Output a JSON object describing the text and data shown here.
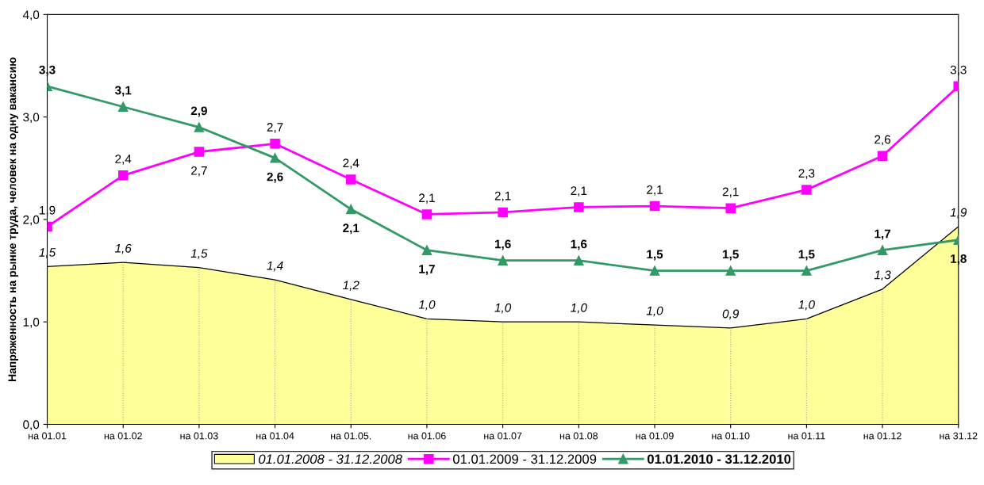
{
  "chart_data": {
    "type": "line",
    "ylabel": "Напряженность на рынке труда, человек на одну вакансию",
    "categories": [
      "на 01.01",
      "на 01.02",
      "на 01.03",
      "на 01.04",
      "на 01.05.",
      "на 01.06",
      "на 01.07",
      "на 01.08",
      "на 01.09",
      "на 01.10",
      "на 01.11",
      "на 01.12",
      "на 31.12"
    ],
    "series": [
      {
        "name": "01.01.2008 - 31.12.2008",
        "type": "area",
        "color": "#ffff99",
        "values": [
          1.54,
          1.58,
          1.53,
          1.41,
          1.22,
          1.03,
          1.0,
          1.0,
          0.97,
          0.94,
          1.03,
          1.32,
          1.93
        ],
        "value_labels": [
          "1,5",
          "1,6",
          "1,5",
          "1,4",
          "1,2",
          "1,0",
          "1,0",
          "1,0",
          "1,0",
          "0,9",
          "1,0",
          "1,3",
          "1,9"
        ],
        "marker": "none"
      },
      {
        "name": "01.01.2009 - 31.12.2009",
        "color": "#ff00ff",
        "values": [
          1.93,
          2.43,
          2.66,
          2.74,
          2.39,
          2.05,
          2.07,
          2.12,
          2.13,
          2.11,
          2.29,
          2.62,
          3.3
        ],
        "value_labels": [
          "1,9",
          "2,4",
          "2,7",
          "2,7",
          "2,4",
          "2,1",
          "2,1",
          "2,1",
          "2,1",
          "2,1",
          "2,3",
          "2,6",
          "3,3"
        ],
        "marker": "square"
      },
      {
        "name": "01.01.2010 - 31.12.2010",
        "color": "#339966",
        "values": [
          3.3,
          3.1,
          2.9,
          2.6,
          2.1,
          1.7,
          1.6,
          1.6,
          1.5,
          1.5,
          1.5,
          1.7,
          1.8
        ],
        "value_labels": [
          "3,3",
          "3,1",
          "2,9",
          "2,6",
          "2,1",
          "1,7",
          "1,6",
          "1,6",
          "1,5",
          "1,5",
          "1,5",
          "1,7",
          "1,8"
        ],
        "marker": "triangle"
      }
    ],
    "ylim": [
      0,
      4
    ],
    "yticks": [
      {
        "value": 0,
        "label": "0,0"
      },
      {
        "value": 1,
        "label": "1,0"
      },
      {
        "value": 2,
        "label": "2,0"
      },
      {
        "value": 3,
        "label": "3,0"
      },
      {
        "value": 4,
        "label": "4,0"
      }
    ],
    "grid": false,
    "legend": "bottom"
  }
}
